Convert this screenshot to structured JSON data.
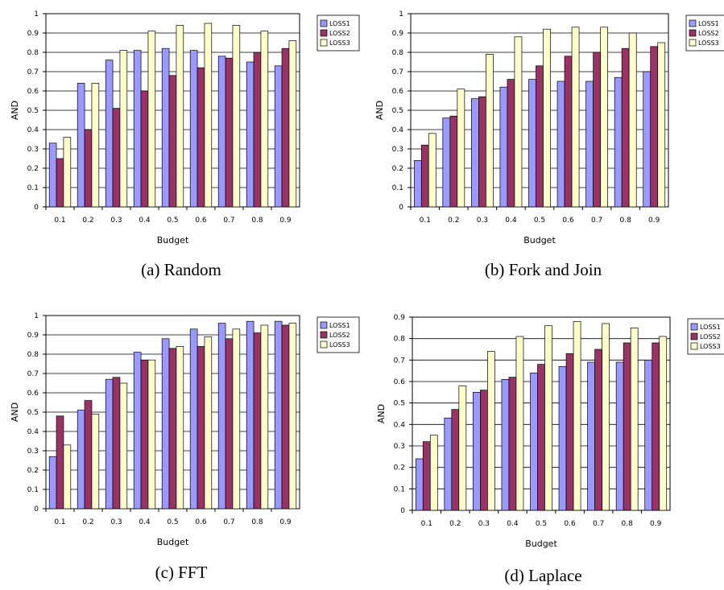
{
  "colors": {
    "LOSS1": "#9999ff",
    "LOSS2": "#993366",
    "LOSS3": "#ffffcc"
  },
  "chart_data": [
    {
      "type": "bar",
      "caption": "(a) Random",
      "xlabel": "Budget",
      "ylabel": "AND",
      "ylim": [
        0,
        1
      ],
      "yticks": [
        "0",
        "0.1",
        "0.2",
        "0.3",
        "0.4",
        "0.5",
        "0.6",
        "0.7",
        "0.8",
        "0.9",
        "1"
      ],
      "categories": [
        "0.1",
        "0.2",
        "0.3",
        "0.4",
        "0.5",
        "0.6",
        "0.7",
        "0.8",
        "0.9"
      ],
      "legend_position": "right",
      "grid": true,
      "series": [
        {
          "name": "LOSS1",
          "values": [
            0.33,
            0.64,
            0.76,
            0.81,
            0.82,
            0.81,
            0.78,
            0.75,
            0.73
          ]
        },
        {
          "name": "LOSS2",
          "values": [
            0.25,
            0.4,
            0.51,
            0.6,
            0.68,
            0.72,
            0.77,
            0.8,
            0.82
          ]
        },
        {
          "name": "LOSS3",
          "values": [
            0.36,
            0.64,
            0.81,
            0.91,
            0.94,
            0.95,
            0.94,
            0.91,
            0.86
          ]
        }
      ]
    },
    {
      "type": "bar",
      "caption": "(b) Fork and Join",
      "xlabel": "Budget",
      "ylabel": "AND",
      "ylim": [
        0,
        1
      ],
      "yticks": [
        "0",
        "0.1",
        "0.2",
        "0.3",
        "0.4",
        "0.5",
        "0.6",
        "0.7",
        "0.8",
        "0.9",
        "1"
      ],
      "categories": [
        "0.1",
        "0.2",
        "0.3",
        "0.4",
        "0.5",
        "0.6",
        "0.7",
        "0.8",
        "0.9"
      ],
      "legend_position": "right",
      "grid": true,
      "series": [
        {
          "name": "LOSS1",
          "values": [
            0.24,
            0.46,
            0.56,
            0.62,
            0.66,
            0.65,
            0.65,
            0.67,
            0.7
          ]
        },
        {
          "name": "LOSS2",
          "values": [
            0.32,
            0.47,
            0.57,
            0.66,
            0.73,
            0.78,
            0.8,
            0.82,
            0.83
          ]
        },
        {
          "name": "LOSS3",
          "values": [
            0.38,
            0.61,
            0.79,
            0.88,
            0.92,
            0.93,
            0.93,
            0.9,
            0.85
          ]
        }
      ]
    },
    {
      "type": "bar",
      "caption": "(c) FFT",
      "xlabel": "Budget",
      "ylabel": "AND",
      "ylim": [
        0,
        1
      ],
      "yticks": [
        "0",
        "0.1",
        "0.2",
        "0.3",
        "0.4",
        "0.5",
        "0.6",
        "0.7",
        "0.8",
        "0.9",
        "1"
      ],
      "categories": [
        "0.1",
        "0.2",
        "0.3",
        "0.4",
        "0.5",
        "0.6",
        "0.7",
        "0.8",
        "0.9"
      ],
      "legend_position": "right",
      "grid": true,
      "series": [
        {
          "name": "LOSS1",
          "values": [
            0.27,
            0.51,
            0.67,
            0.81,
            0.88,
            0.93,
            0.96,
            0.97,
            0.97
          ]
        },
        {
          "name": "LOSS2",
          "values": [
            0.48,
            0.56,
            0.68,
            0.77,
            0.83,
            0.84,
            0.88,
            0.91,
            0.95
          ]
        },
        {
          "name": "LOSS3",
          "values": [
            0.33,
            0.49,
            0.65,
            0.77,
            0.84,
            0.89,
            0.93,
            0.95,
            0.96
          ]
        }
      ]
    },
    {
      "type": "bar",
      "caption": "(d) Laplace",
      "xlabel": "Budget",
      "ylabel": "AND",
      "ylim": [
        0,
        0.9
      ],
      "yticks": [
        "0",
        "0.1",
        "0.2",
        "0.3",
        "0.4",
        "0.5",
        "0.6",
        "0.7",
        "0.8",
        "0.9"
      ],
      "categories": [
        "0.1",
        "0.2",
        "0.3",
        "0.4",
        "0.5",
        "0.6",
        "0.7",
        "0.8",
        "0.9"
      ],
      "legend_position": "right",
      "grid": true,
      "series": [
        {
          "name": "LOSS1",
          "values": [
            0.24,
            0.43,
            0.55,
            0.61,
            0.64,
            0.67,
            0.69,
            0.69,
            0.7
          ]
        },
        {
          "name": "LOSS2",
          "values": [
            0.32,
            0.47,
            0.56,
            0.62,
            0.68,
            0.73,
            0.75,
            0.78,
            0.78
          ]
        },
        {
          "name": "LOSS3",
          "values": [
            0.35,
            0.58,
            0.74,
            0.81,
            0.86,
            0.88,
            0.87,
            0.85,
            0.81
          ]
        }
      ]
    }
  ]
}
